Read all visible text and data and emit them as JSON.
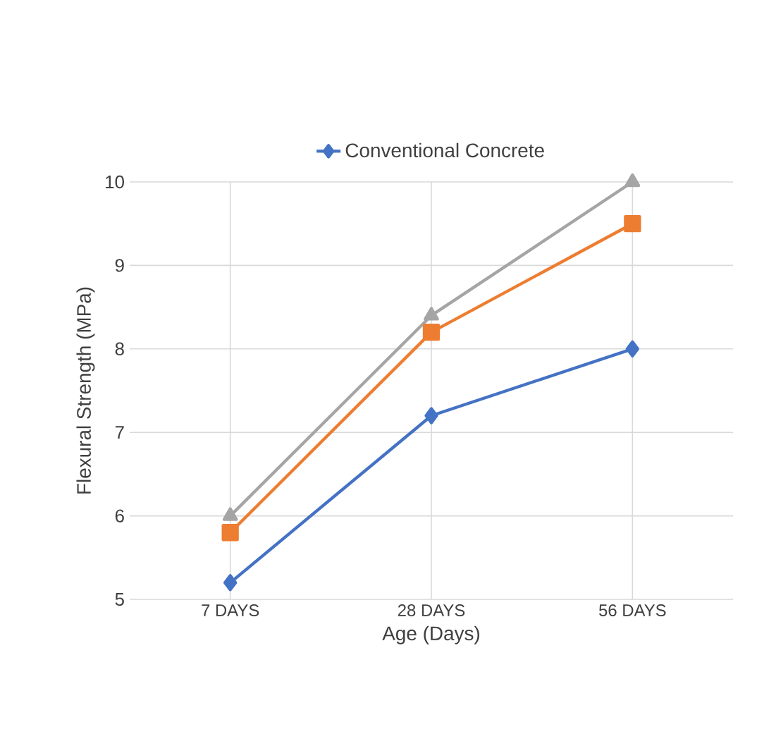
{
  "chart_data": {
    "type": "line",
    "xlabel": "Age (Days)",
    "ylabel": "Flexural Strength (MPa)",
    "categories": [
      "7 DAYS",
      "28 DAYS",
      "56 DAYS"
    ],
    "series": [
      {
        "name": "Conventional Concrete",
        "color": "#4472c4",
        "marker": "diamond",
        "values": [
          5.2,
          7.2,
          8.0
        ]
      },
      {
        "color": "#ed7d31",
        "marker": "square",
        "values": [
          5.8,
          8.2,
          9.5
        ]
      },
      {
        "color": "#a5a5a5",
        "marker": "triangle",
        "values": [
          6.0,
          8.4,
          10.0
        ]
      }
    ],
    "ylim": [
      5,
      10
    ],
    "yticks": [
      5,
      6,
      7,
      8,
      9,
      10
    ],
    "grid": true,
    "legend": "top",
    "line_style": "solid"
  }
}
